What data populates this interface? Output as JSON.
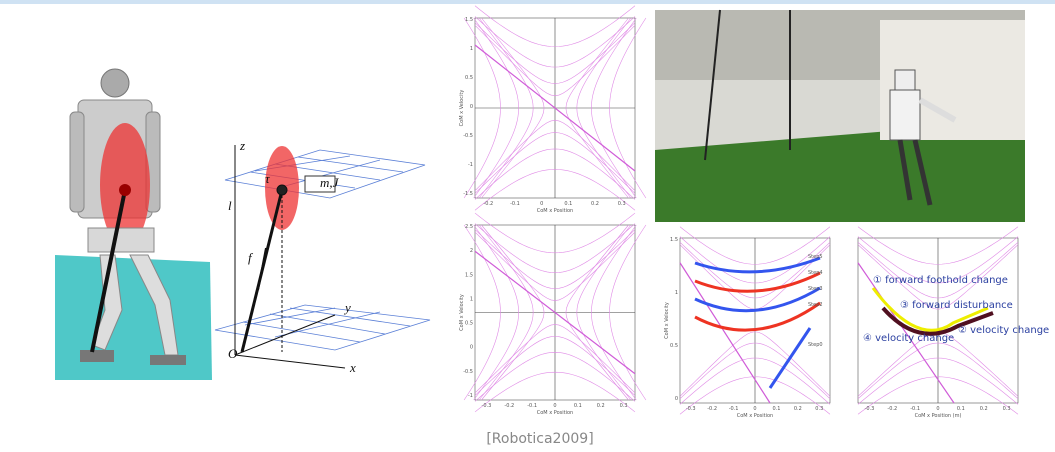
{
  "caption": "[Robotica2009]",
  "model_labels": {
    "z": "z",
    "tau": "τ",
    "mass": "m,J",
    "force": "f",
    "length": "l",
    "y": "y",
    "x": "x",
    "origin": "O"
  },
  "plots": [
    {
      "x_label": "CoM x Position",
      "y_label": "CoM x Velocity",
      "xticks": [
        "-0.2",
        "-0.1",
        "0",
        "0.1",
        "0.2",
        "0.3"
      ],
      "yticks": [
        "1.5",
        "1",
        "0.5",
        "0",
        "-0.5",
        "-1",
        "-1.5"
      ]
    },
    {
      "x_label": "CoM x Position",
      "y_label": "CoM x Velocity",
      "xticks": [
        "-0.3",
        "-0.2",
        "-0.1",
        "0",
        "0.1",
        "0.2",
        "0.3"
      ],
      "yticks": [
        "2.5",
        "2",
        "1.5",
        "1",
        "0.5",
        "0",
        "-0.5",
        "-1"
      ]
    },
    {
      "x_label": "CoM x Position",
      "y_label": "CoM x Velocity",
      "xticks": [
        "-0.3",
        "-0.2",
        "-0.1",
        "0",
        "0.1",
        "0.2",
        "0.3"
      ],
      "yticks": [
        "1.5",
        "1",
        "0.5",
        "0"
      ],
      "annotations": [
        "Step5",
        "Step4",
        "Step3",
        "Step2",
        "Step0"
      ]
    },
    {
      "x_label": "CoM x Position (m)",
      "y_label": "",
      "xticks": [
        "-0.3",
        "-0.2",
        "-0.1",
        "0",
        "0.1",
        "0.2",
        "0.3"
      ],
      "yticks": [],
      "annotations": [
        "① forward foothold change",
        "③ forward disturbance",
        "② velocity change",
        "④ velocity change"
      ]
    }
  ]
}
